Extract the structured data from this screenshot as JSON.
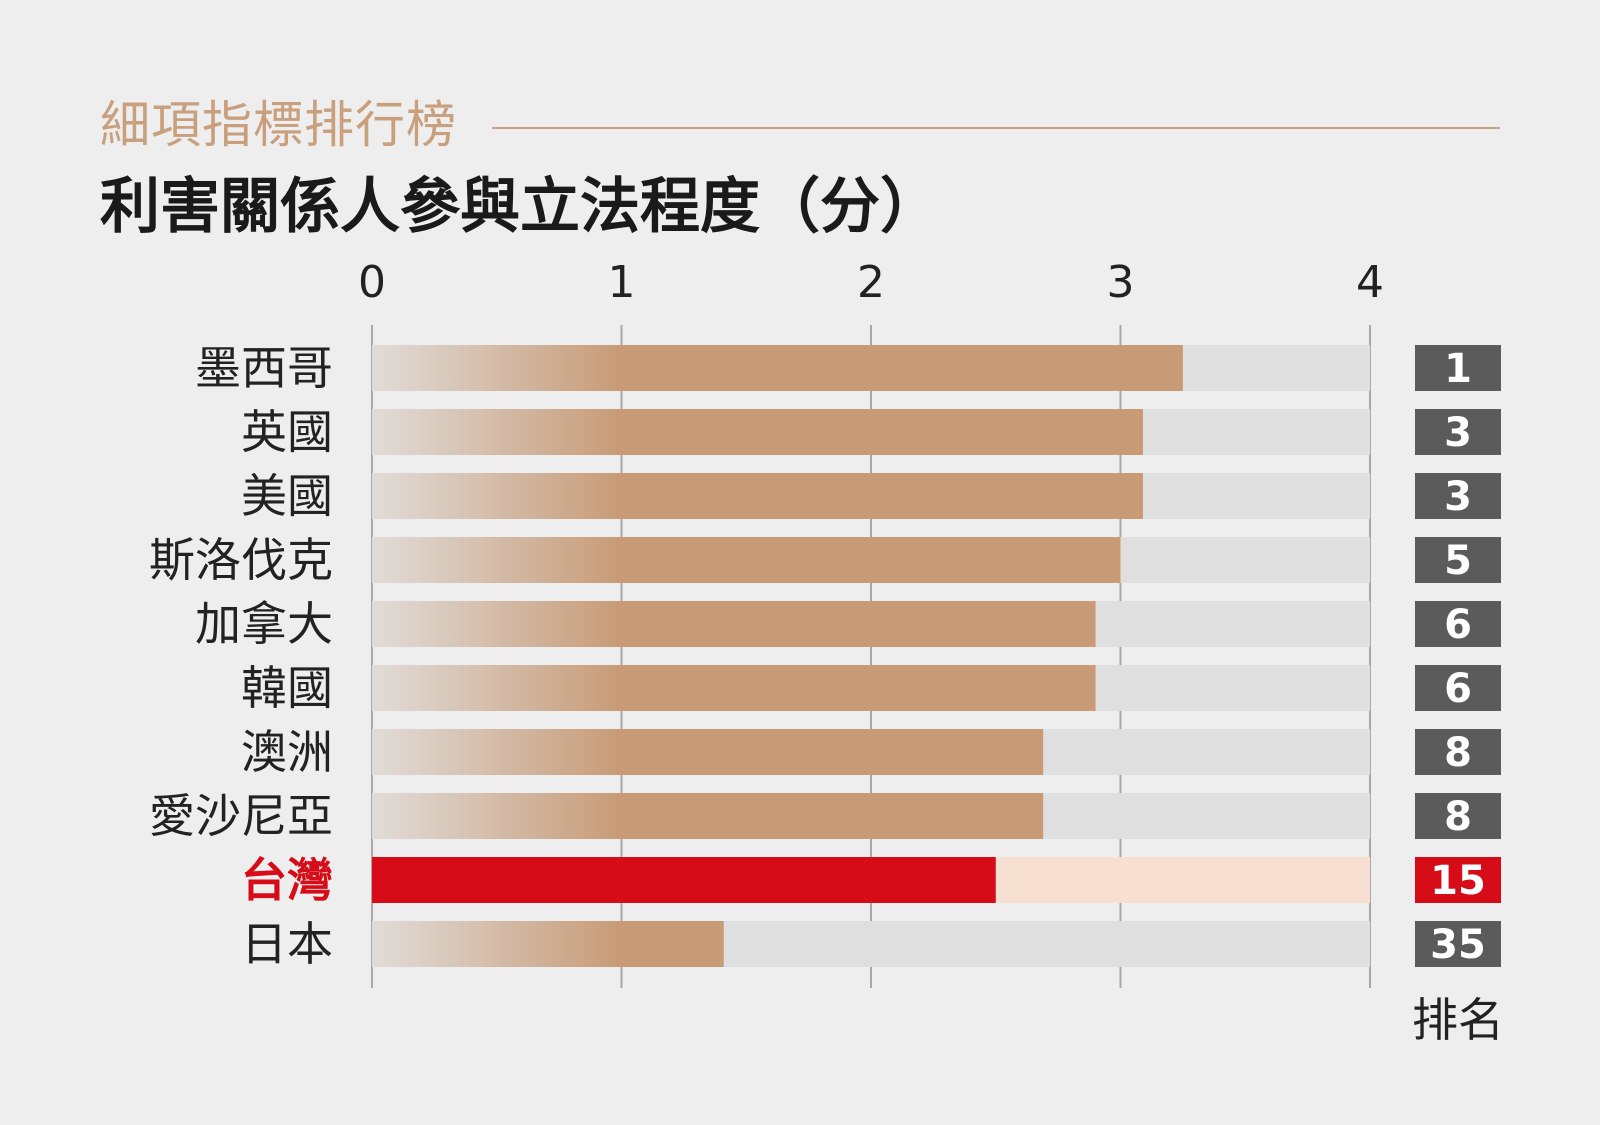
{
  "header": {
    "subtitle": "細項指標排行榜",
    "title": "利害關係人參與立法程度（分）"
  },
  "colors": {
    "background": "#efeeee",
    "bar": "#c89b76",
    "bar_fade": "#e0dcd9",
    "track": "#dfdfdf",
    "highlight": "#d70c19",
    "highlight_track": "#f7dfd2",
    "rank_box": "#5b5b5b",
    "accent": "#c9a07e"
  },
  "chart_data": {
    "type": "bar",
    "orientation": "horizontal",
    "title": "利害關係人參與立法程度（分）",
    "xlim": [
      0,
      4
    ],
    "x_ticks": [
      "0",
      "1",
      "2",
      "3",
      "4"
    ],
    "grid": true,
    "categories": [
      "墨西哥",
      "英國",
      "美國",
      "斯洛伐克",
      "加拿大",
      "韓國",
      "澳洲",
      "愛沙尼亞",
      "台灣",
      "日本"
    ],
    "values": [
      3.25,
      3.09,
      3.09,
      3.0,
      2.9,
      2.9,
      2.69,
      2.69,
      2.5,
      1.41
    ],
    "ranks": [
      "1",
      "3",
      "3",
      "5",
      "6",
      "6",
      "8",
      "8",
      "15",
      "35"
    ],
    "rank_caption": "排名",
    "highlight_category": "台灣"
  }
}
